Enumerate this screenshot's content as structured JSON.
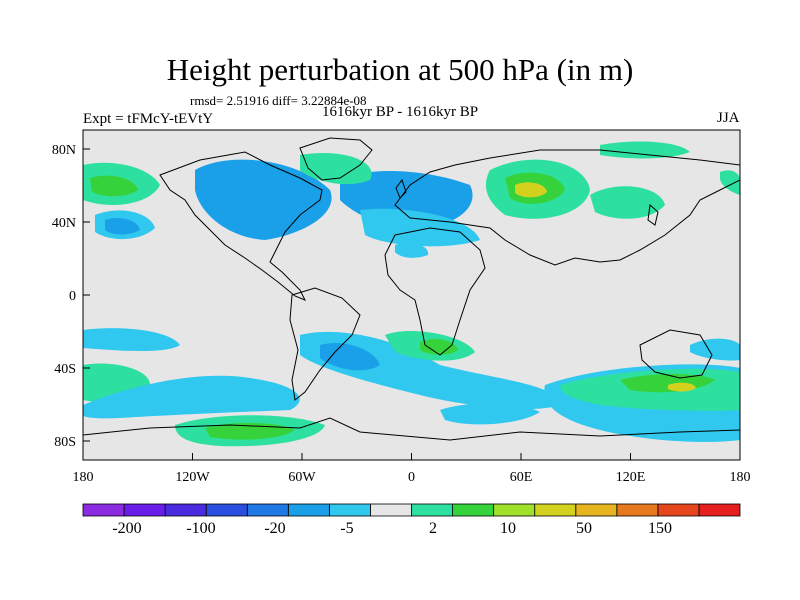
{
  "title": "Height perturbation at 500 hPa (in m)",
  "stats": "rmsd= 2.51916 diff= 3.22884e-08",
  "experiment": "Expt = tFMcY-tEVtY",
  "period": "1616kyr BP - 1616kyr BP",
  "season": "JJA",
  "map": {
    "background_color": "#e6e6e6",
    "lat_labels": [
      "80N",
      "40N",
      "0",
      "40S",
      "80S"
    ],
    "lon_labels": [
      "180",
      "120W",
      "60W",
      "0",
      "60E",
      "120E",
      "180"
    ]
  },
  "colorbar": {
    "colors": [
      "#8a2be2",
      "#6a1ce8",
      "#4b2be0",
      "#2a4fe0",
      "#1e78e6",
      "#1aa0e8",
      "#30c8ee",
      "#e6e6e6",
      "#2ee0a0",
      "#36d23c",
      "#9ee02a",
      "#d2d21e",
      "#e6b41e",
      "#e6781e",
      "#e6461e",
      "#e61e1e"
    ],
    "labels": [
      "-200",
      "-100",
      "-20",
      "-5",
      "2",
      "10",
      "50",
      "150"
    ]
  }
}
